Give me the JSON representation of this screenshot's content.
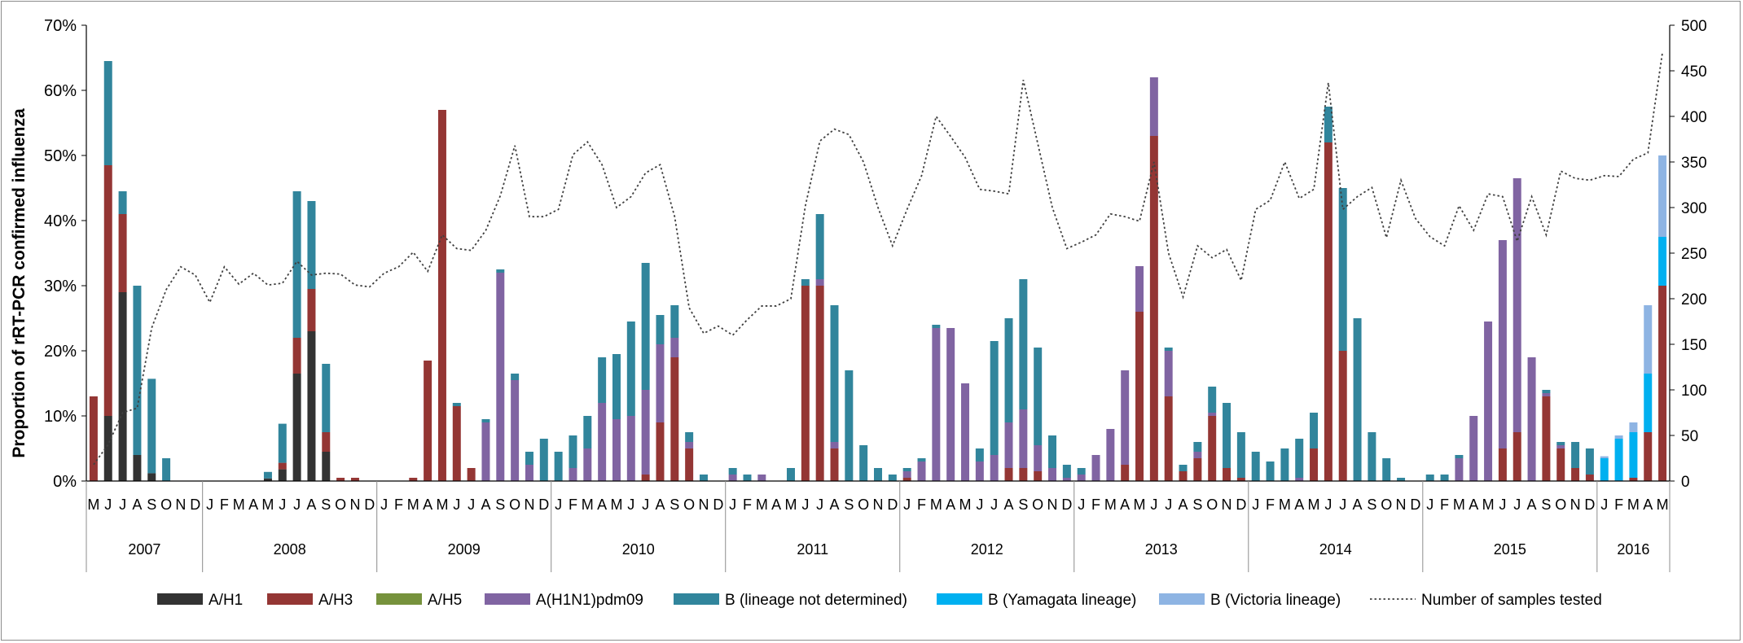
{
  "chart_data": {
    "type": "bar",
    "stacked": true,
    "ylabel": "Proportion of rRT-PCR confirmed influenza",
    "y_left_ticks": [
      "0%",
      "10%",
      "20%",
      "30%",
      "40%",
      "50%",
      "60%",
      "70%"
    ],
    "y_right_ticks": [
      "0",
      "50",
      "100",
      "150",
      "200",
      "250",
      "300",
      "350",
      "400",
      "450",
      "500"
    ],
    "ylim_left": [
      0,
      70
    ],
    "ylim_right": [
      0,
      500
    ],
    "years": [
      {
        "label": "2007",
        "months": [
          "M",
          "J",
          "J",
          "A",
          "S",
          "O",
          "N",
          "D"
        ]
      },
      {
        "label": "2008",
        "months": [
          "J",
          "F",
          "M",
          "A",
          "M",
          "J",
          "J",
          "A",
          "S",
          "O",
          "N",
          "D"
        ]
      },
      {
        "label": "2009",
        "months": [
          "J",
          "F",
          "M",
          "A",
          "M",
          "J",
          "J",
          "A",
          "S",
          "O",
          "N",
          "D"
        ]
      },
      {
        "label": "2010",
        "months": [
          "J",
          "F",
          "M",
          "A",
          "M",
          "J",
          "J",
          "A",
          "S",
          "O",
          "N",
          "D"
        ]
      },
      {
        "label": "2011",
        "months": [
          "J",
          "F",
          "M",
          "A",
          "M",
          "J",
          "J",
          "A",
          "S",
          "O",
          "N",
          "D"
        ]
      },
      {
        "label": "2012",
        "months": [
          "J",
          "F",
          "M",
          "A",
          "M",
          "J",
          "J",
          "A",
          "S",
          "O",
          "N",
          "D"
        ]
      },
      {
        "label": "2013",
        "months": [
          "J",
          "F",
          "M",
          "A",
          "M",
          "J",
          "J",
          "A",
          "S",
          "O",
          "N",
          "D"
        ]
      },
      {
        "label": "2014",
        "months": [
          "J",
          "F",
          "M",
          "A",
          "M",
          "J",
          "J",
          "A",
          "S",
          "O",
          "N",
          "D"
        ]
      },
      {
        "label": "2015",
        "months": [
          "J",
          "F",
          "M",
          "A",
          "M",
          "J",
          "J",
          "A",
          "S",
          "O",
          "N",
          "D"
        ]
      },
      {
        "label": "2016",
        "months": [
          "J",
          "F",
          "M",
          "A",
          "M"
        ]
      }
    ],
    "series": [
      {
        "name": "A/H1",
        "color": "#333333",
        "values": [
          0,
          10,
          29,
          4,
          1.2,
          0,
          0,
          0,
          0,
          0,
          0,
          0,
          0.4,
          1.8,
          16.5,
          23,
          4.5,
          0,
          0,
          0,
          0,
          0,
          0,
          0,
          0,
          0,
          0,
          0,
          0,
          0,
          0,
          0,
          0,
          0,
          0,
          0,
          0,
          0,
          0,
          0,
          0,
          0,
          0,
          0,
          0,
          0,
          0,
          0,
          0,
          0,
          0,
          0,
          0,
          0,
          0,
          0,
          0,
          0,
          0,
          0,
          0,
          0,
          0,
          0,
          0,
          0,
          0,
          0,
          0,
          0,
          0,
          0,
          0,
          0,
          0,
          0,
          0,
          0,
          0,
          0,
          0,
          0,
          0,
          0,
          0,
          0,
          0,
          0,
          0,
          0,
          0,
          0,
          0,
          0,
          0,
          0,
          0,
          0,
          0,
          0,
          0,
          0,
          0,
          0,
          0,
          0,
          0,
          0,
          0
        ]
      },
      {
        "name": "A/H3",
        "color": "#943634",
        "values": [
          13,
          38.5,
          12,
          0,
          0,
          0,
          0,
          0,
          0,
          0,
          0,
          0,
          0,
          1,
          5.5,
          6.5,
          3,
          0.5,
          0.5,
          0,
          0,
          0,
          0.5,
          18.5,
          57,
          11.5,
          2,
          0,
          0,
          0,
          0,
          0,
          0,
          0,
          0,
          0,
          0,
          0,
          1,
          9,
          19,
          5,
          0,
          0,
          0,
          0,
          0,
          0,
          0,
          30,
          30,
          5,
          0,
          0,
          0,
          0,
          0.5,
          0,
          0,
          0,
          0,
          0,
          0,
          2,
          2,
          1.5,
          0,
          0,
          0,
          0,
          0,
          2.5,
          26,
          53,
          13,
          1.5,
          3.5,
          10,
          2,
          0.5,
          0,
          0,
          0,
          0,
          5,
          52,
          20,
          0,
          0,
          0,
          0,
          0,
          0,
          0,
          0,
          0,
          0,
          5,
          7.5,
          0,
          13,
          5,
          2,
          1,
          0,
          0,
          0.5,
          7.5,
          30
        ]
      },
      {
        "name": "A/H5",
        "color": "#76923C",
        "values": [
          0,
          0,
          0,
          0,
          0,
          0,
          0,
          0,
          0,
          0,
          0,
          0,
          0,
          0,
          0,
          0,
          0,
          0,
          0,
          0,
          0,
          0,
          0,
          0,
          0,
          0,
          0,
          0,
          0,
          0,
          0,
          0,
          0,
          0,
          0,
          0,
          0,
          0,
          0,
          0,
          0,
          0,
          0,
          0,
          0,
          0,
          0,
          0,
          0,
          0,
          0,
          0,
          0,
          0,
          0,
          0,
          0,
          0,
          0,
          0,
          0,
          0,
          0,
          0,
          0,
          0,
          0,
          0,
          0,
          0,
          0,
          0,
          0,
          0,
          0,
          0,
          0,
          0,
          0,
          0,
          0,
          0,
          0,
          0,
          0,
          0,
          0,
          0,
          0,
          0,
          0,
          0,
          0,
          0,
          0,
          0,
          0,
          0,
          0,
          0,
          0,
          0,
          0,
          0,
          0,
          0,
          0,
          0,
          0
        ]
      },
      {
        "name": "A(H1N1)pdm09",
        "color": "#8064A2",
        "values": [
          0,
          0,
          0,
          0,
          0,
          0,
          0,
          0,
          0,
          0,
          0,
          0,
          0,
          0,
          0,
          0,
          0,
          0,
          0,
          0,
          0,
          0,
          0,
          0,
          0,
          0,
          0,
          9,
          32,
          15.5,
          2.5,
          0,
          0,
          2,
          5,
          12,
          9.5,
          10,
          13,
          12,
          3,
          1,
          0,
          0,
          1,
          0,
          1,
          0,
          0,
          0,
          1,
          1,
          0,
          0,
          0,
          0,
          1,
          3,
          23.5,
          23.5,
          15,
          3,
          4,
          7,
          9,
          4,
          2,
          0.5,
          1,
          4,
          8,
          14.5,
          7,
          9,
          7,
          0,
          1,
          0.5,
          0,
          0,
          0,
          0,
          0,
          0.5,
          0,
          0,
          0,
          0,
          0,
          0,
          0,
          0,
          0,
          0,
          3.5,
          10,
          24.5,
          32,
          39,
          19,
          0.5,
          0.5,
          0,
          0,
          0,
          0,
          0,
          0,
          0
        ]
      },
      {
        "name": "B (lineage not determined)",
        "color": "#31859C",
        "values": [
          0,
          16,
          3.5,
          26,
          14.5,
          3.5,
          0,
          0,
          0,
          0,
          0,
          0,
          1,
          6,
          22.5,
          13.5,
          10.5,
          0,
          0,
          0,
          0,
          0,
          0,
          0,
          0,
          0.5,
          0,
          0.5,
          0.5,
          1,
          2,
          6.5,
          4.5,
          5,
          5,
          7,
          10,
          14.5,
          19.5,
          4.5,
          5,
          1.5,
          1,
          0,
          1,
          1,
          0,
          0,
          2,
          1,
          10,
          21,
          17,
          5.5,
          2,
          1,
          0.5,
          0.5,
          0.5,
          0,
          0,
          2,
          17.5,
          16,
          20,
          15,
          5,
          2,
          1,
          0,
          0,
          0,
          0,
          0,
          0.5,
          1,
          1.5,
          4,
          10,
          7,
          4.5,
          3,
          5,
          6,
          5.5,
          5.5,
          25,
          25,
          7.5,
          3.5,
          0.5,
          0,
          1,
          1,
          0.5,
          0,
          0,
          0,
          0,
          0,
          0.5,
          0.5,
          4,
          4,
          0,
          0,
          0,
          0,
          0
        ]
      },
      {
        "name": "B (Yamagata lineage)",
        "color": "#00B0F0",
        "values": [
          0,
          0,
          0,
          0,
          0,
          0,
          0,
          0,
          0,
          0,
          0,
          0,
          0,
          0,
          0,
          0,
          0,
          0,
          0,
          0,
          0,
          0,
          0,
          0,
          0,
          0,
          0,
          0,
          0,
          0,
          0,
          0,
          0,
          0,
          0,
          0,
          0,
          0,
          0,
          0,
          0,
          0,
          0,
          0,
          0,
          0,
          0,
          0,
          0,
          0,
          0,
          0,
          0,
          0,
          0,
          0,
          0,
          0,
          0,
          0,
          0,
          0,
          0,
          0,
          0,
          0,
          0,
          0,
          0,
          0,
          0,
          0,
          0,
          0,
          0,
          0,
          0,
          0,
          0,
          0,
          0,
          0,
          0,
          0,
          0,
          0,
          0,
          0,
          0,
          0,
          0,
          0,
          0,
          0,
          0,
          0,
          0,
          0,
          0,
          0,
          0,
          0,
          0,
          0,
          3.5,
          6.5,
          7,
          9,
          7.5
        ]
      },
      {
        "name": "B (Victoria lineage)",
        "color": "#8EB4E3",
        "values": [
          0,
          0,
          0,
          0,
          0,
          0,
          0,
          0,
          0,
          0,
          0,
          0,
          0,
          0,
          0,
          0,
          0,
          0,
          0,
          0,
          0,
          0,
          0,
          0,
          0,
          0,
          0,
          0,
          0,
          0,
          0,
          0,
          0,
          0,
          0,
          0,
          0,
          0,
          0,
          0,
          0,
          0,
          0,
          0,
          0,
          0,
          0,
          0,
          0,
          0,
          0,
          0,
          0,
          0,
          0,
          0,
          0,
          0,
          0,
          0,
          0,
          0,
          0,
          0,
          0,
          0,
          0,
          0,
          0,
          0,
          0,
          0,
          0,
          0,
          0,
          0,
          0,
          0,
          0,
          0,
          0,
          0,
          0,
          0,
          0,
          0,
          0,
          0,
          0,
          0,
          0,
          0,
          0,
          0,
          0,
          0,
          0,
          0,
          0,
          0,
          0,
          0,
          0,
          0,
          0.3,
          0.5,
          1.5,
          10.5,
          12.5
        ]
      }
    ],
    "line": {
      "name": "Number of samples tested",
      "axis": "right",
      "values": [
        18,
        40,
        75,
        80,
        168,
        210,
        235,
        226,
        196,
        235,
        216,
        228,
        215,
        217,
        241,
        226,
        228,
        227,
        215,
        213,
        228,
        235,
        251,
        230,
        270,
        255,
        253,
        275,
        313,
        368,
        290,
        290,
        298,
        358,
        372,
        347,
        300,
        312,
        338,
        347,
        290,
        190,
        162,
        170,
        160,
        177,
        192,
        192,
        200,
        302,
        373,
        386,
        380,
        350,
        300,
        258,
        298,
        335,
        400,
        378,
        355,
        320,
        318,
        315,
        440,
        370,
        300,
        255,
        262,
        270,
        293,
        290,
        285,
        350,
        250,
        202,
        258,
        245,
        254,
        220,
        298,
        308,
        350,
        310,
        320,
        437,
        298,
        312,
        322,
        267,
        330,
        288,
        268,
        258,
        302,
        275,
        315,
        312,
        263,
        312,
        270,
        340,
        332,
        330,
        335,
        334,
        353,
        360,
        470
      ]
    },
    "legend": [
      "A/H1",
      "A/H3",
      "A/H5",
      "A(H1N1)pdm09",
      "B (lineage not determined)",
      "B (Yamagata lineage)",
      "B (Victoria lineage)",
      "Number of samples tested"
    ],
    "legend_position": "bottom"
  }
}
